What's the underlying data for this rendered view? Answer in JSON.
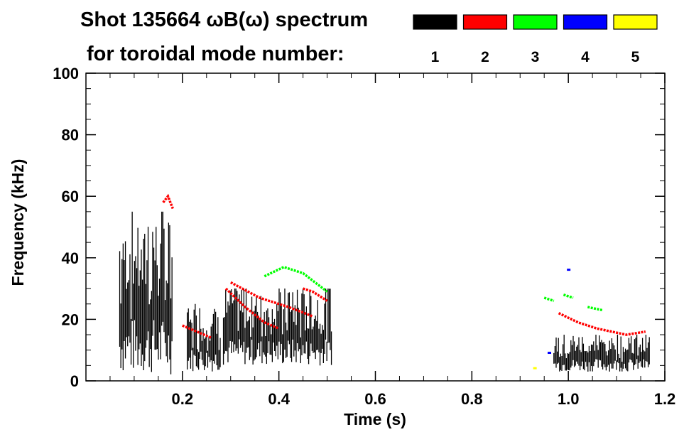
{
  "title": {
    "line1": "Shot 135664 ωB(ω) spectrum",
    "line2": "for toroidal mode number:"
  },
  "legend": {
    "placement": "top-right",
    "items": [
      {
        "label": "1",
        "color": "#000000"
      },
      {
        "label": "2",
        "color": "#ff0000"
      },
      {
        "label": "3",
        "color": "#00ff00"
      },
      {
        "label": "4",
        "color": "#0000ff"
      },
      {
        "label": "5",
        "color": "#ffff00"
      }
    ]
  },
  "chart_data": {
    "type": "heatmap",
    "title": "Shot 135664 ωB(ω) spectrum",
    "xlabel": "Time (s)",
    "ylabel": "Frequency (kHz)",
    "xlim": [
      0.0,
      1.2
    ],
    "ylim": [
      0,
      100
    ],
    "xticks": [
      0.2,
      0.4,
      0.6,
      0.8,
      1.0,
      1.2
    ],
    "xtick_labels": [
      "0.2",
      "0.4",
      "0.6",
      "0.8",
      "1.0",
      "1.2"
    ],
    "yticks": [
      0,
      20,
      40,
      60,
      80,
      100
    ],
    "ytick_labels": [
      "0",
      "20",
      "40",
      "60",
      "80",
      "100"
    ],
    "grid": false,
    "series": [
      {
        "name": "1",
        "color": "#000000",
        "regions": [
          {
            "t": [
              0.07,
              0.18
            ],
            "f": [
              2,
              55
            ]
          },
          {
            "t": [
              0.21,
              0.28
            ],
            "f": [
              3,
              25
            ]
          },
          {
            "t": [
              0.285,
              0.51
            ],
            "f": [
              5,
              30
            ]
          },
          {
            "t": [
              0.97,
              1.17
            ],
            "f": [
              3,
              15
            ]
          }
        ]
      },
      {
        "name": "2",
        "color": "#ff0000",
        "lines": [
          [
            [
              0.16,
              58
            ],
            [
              0.17,
              60
            ],
            [
              0.18,
              56
            ]
          ],
          [
            [
              0.2,
              18
            ],
            [
              0.23,
              16
            ],
            [
              0.26,
              14
            ]
          ],
          [
            [
              0.29,
              30
            ],
            [
              0.33,
              24
            ],
            [
              0.37,
              19
            ],
            [
              0.4,
              17
            ]
          ],
          [
            [
              0.3,
              32
            ],
            [
              0.36,
              27
            ],
            [
              0.42,
              24
            ],
            [
              0.47,
              21
            ]
          ],
          [
            [
              0.45,
              30
            ],
            [
              0.47,
              29
            ],
            [
              0.5,
              26
            ]
          ],
          [
            [
              0.98,
              22
            ],
            [
              1.02,
              19
            ],
            [
              1.06,
              17
            ],
            [
              1.12,
              15
            ],
            [
              1.16,
              16
            ]
          ]
        ]
      },
      {
        "name": "3",
        "color": "#00ff00",
        "lines": [
          [
            [
              0.37,
              34
            ],
            [
              0.41,
              37
            ],
            [
              0.45,
              35
            ],
            [
              0.5,
              29
            ]
          ],
          [
            [
              0.95,
              27
            ],
            [
              0.97,
              26
            ]
          ],
          [
            [
              0.99,
              28
            ],
            [
              1.01,
              27
            ]
          ],
          [
            [
              1.04,
              24
            ],
            [
              1.07,
              23
            ]
          ]
        ]
      },
      {
        "name": "4",
        "color": "#0000ff",
        "points": [
          [
            1.0,
            36
          ],
          [
            0.96,
            9
          ]
        ]
      },
      {
        "name": "5",
        "color": "#ffff00",
        "points": [
          [
            0.93,
            4
          ]
        ]
      }
    ]
  }
}
